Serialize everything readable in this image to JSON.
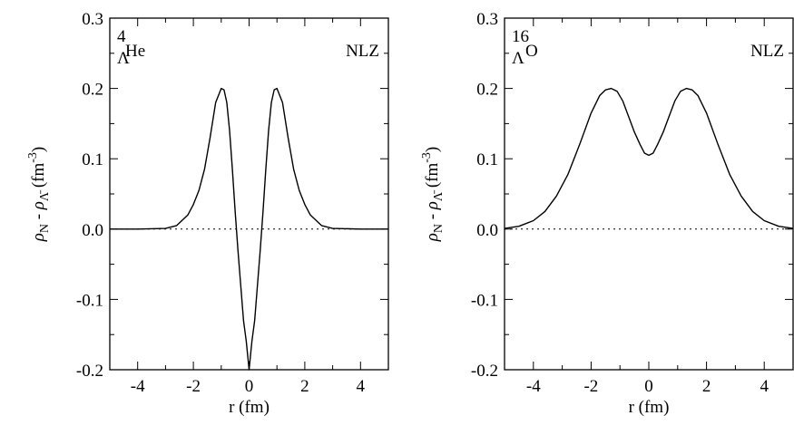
{
  "chart_data": [
    {
      "type": "line",
      "annotation_left": {
        "sup": "4",
        "sub": "Λ",
        "text": "He"
      },
      "annotation_right": "NLZ",
      "xlabel": "r (fm)",
      "ylabel": {
        "rho": "ρ",
        "n_sub": "N",
        "minus": " - ",
        "lbar_sub": "Λ̄",
        "unit_open": " (fm",
        "unit_exp": "-3",
        "unit_close": ")"
      },
      "xlim": [
        -5,
        5
      ],
      "ylim": [
        -0.2,
        0.3
      ],
      "xticks": [
        -4,
        -2,
        0,
        2,
        4
      ],
      "xtick_labels": [
        "-4",
        "-2",
        "0",
        "2",
        "4"
      ],
      "yticks": [
        -0.2,
        -0.1,
        0.0,
        0.1,
        0.2,
        0.3
      ],
      "ytick_labels": [
        "-0.2",
        "-0.1",
        "0.0",
        "0.1",
        "0.2",
        "0.3"
      ],
      "zero_line": true,
      "series": [
        {
          "x": [
            -5,
            -4,
            -3,
            -2.6,
            -2.2,
            -2.0,
            -1.8,
            -1.6,
            -1.4,
            -1.2,
            -1.0,
            -0.9,
            -0.8,
            -0.7,
            -0.6,
            -0.5,
            -0.4,
            -0.3,
            -0.2,
            -0.1,
            0.0,
            0.1,
            0.2,
            0.3,
            0.4,
            0.5,
            0.6,
            0.7,
            0.8,
            0.9,
            1.0,
            1.2,
            1.4,
            1.6,
            1.8,
            2.0,
            2.2,
            2.6,
            3,
            4,
            5
          ],
          "y": [
            0.0,
            0.0,
            0.001,
            0.005,
            0.02,
            0.035,
            0.055,
            0.085,
            0.13,
            0.18,
            0.2,
            0.198,
            0.18,
            0.14,
            0.085,
            0.025,
            -0.03,
            -0.08,
            -0.13,
            -0.16,
            -0.2,
            -0.16,
            -0.13,
            -0.08,
            -0.03,
            0.025,
            0.085,
            0.14,
            0.18,
            0.198,
            0.2,
            0.18,
            0.13,
            0.085,
            0.055,
            0.035,
            0.02,
            0.005,
            0.001,
            0.0,
            0.0
          ]
        }
      ]
    },
    {
      "type": "line",
      "annotation_left": {
        "sup": "16",
        "sub": "Λ",
        "text": "O"
      },
      "annotation_right": "NLZ",
      "xlabel": "r (fm)",
      "ylabel": {
        "rho": "ρ",
        "n_sub": "N",
        "minus": " - ",
        "lbar_sub": "Λ̄",
        "unit_open": " (fm",
        "unit_exp": "-3",
        "unit_close": ")"
      },
      "xlim": [
        -5,
        5
      ],
      "ylim": [
        -0.2,
        0.3
      ],
      "xticks": [
        -4,
        -2,
        0,
        2,
        4
      ],
      "xtick_labels": [
        "-4",
        "-2",
        "0",
        "2",
        "4"
      ],
      "yticks": [
        -0.2,
        -0.1,
        0.0,
        0.1,
        0.2,
        0.3
      ],
      "ytick_labels": [
        "-0.2",
        "-0.1",
        "0.0",
        "0.1",
        "0.2",
        "0.3"
      ],
      "zero_line": true,
      "series": [
        {
          "x": [
            -5,
            -4.5,
            -4.0,
            -3.6,
            -3.2,
            -2.8,
            -2.4,
            -2.0,
            -1.7,
            -1.5,
            -1.3,
            -1.1,
            -0.9,
            -0.7,
            -0.5,
            -0.3,
            -0.15,
            0.0,
            0.15,
            0.3,
            0.5,
            0.7,
            0.9,
            1.1,
            1.3,
            1.5,
            1.7,
            2.0,
            2.4,
            2.8,
            3.2,
            3.6,
            4.0,
            4.5,
            5
          ],
          "y": [
            0.001,
            0.004,
            0.012,
            0.025,
            0.047,
            0.078,
            0.12,
            0.165,
            0.19,
            0.198,
            0.2,
            0.196,
            0.182,
            0.16,
            0.138,
            0.12,
            0.108,
            0.105,
            0.108,
            0.12,
            0.138,
            0.16,
            0.182,
            0.196,
            0.2,
            0.198,
            0.19,
            0.165,
            0.12,
            0.078,
            0.047,
            0.025,
            0.012,
            0.004,
            0.001
          ]
        }
      ]
    }
  ]
}
